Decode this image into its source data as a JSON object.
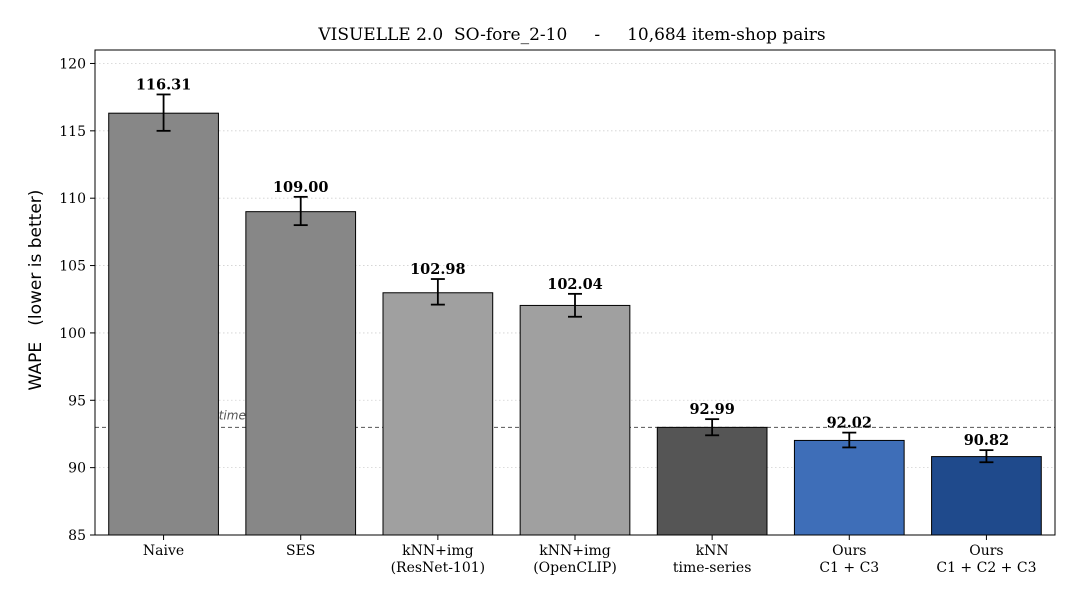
{
  "chart_data": {
    "type": "bar",
    "title": "VISUELLE 2.0  SO-fore_2-10     -     10,684 item-shop pairs",
    "xlabel": "",
    "ylabel": "WAPE   (lower is better)",
    "ylim": [
      85,
      121
    ],
    "yticks": [
      85,
      90,
      95,
      100,
      105,
      110,
      115,
      120
    ],
    "grid": "horizontal dotted",
    "categories": [
      [
        "Naive"
      ],
      [
        "SES"
      ],
      [
        "kNN+img",
        "(ResNet-101)"
      ],
      [
        "kNN+img",
        "(OpenCLIP)"
      ],
      [
        "kNN",
        "time-series"
      ],
      [
        "Ours",
        "C1 + C3"
      ],
      [
        "Ours",
        "C1 + C2 + C3"
      ]
    ],
    "values": [
      116.31,
      109.0,
      102.98,
      102.04,
      92.99,
      92.02,
      90.82
    ],
    "value_labels": [
      "116.31",
      "109.00",
      "102.98",
      "102.04",
      "92.99",
      "92.02",
      "90.82"
    ],
    "error_low": [
      115.0,
      108.0,
      102.1,
      101.2,
      92.4,
      91.5,
      90.4
    ],
    "error_high": [
      117.7,
      110.1,
      104.0,
      102.9,
      93.6,
      92.6,
      91.3
    ],
    "colors": [
      "#878787",
      "#878787",
      "#a0a0a0",
      "#a0a0a0",
      "#555555",
      "#3e6eb8",
      "#1f4a8c"
    ],
    "reference_line": {
      "value": 92.99,
      "label": "kNN time-series baseline",
      "style": "dashed"
    }
  }
}
